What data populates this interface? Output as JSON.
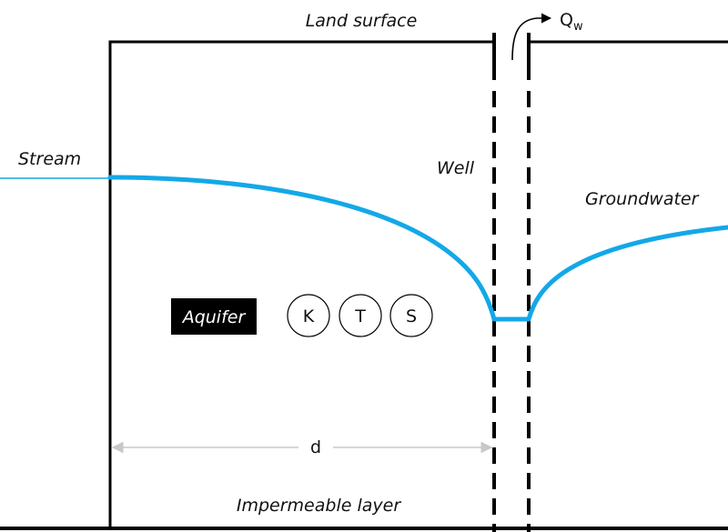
{
  "labels": {
    "land_surface": "Land surface",
    "stream": "Stream",
    "well": "Well",
    "groundwater": "Groundwater",
    "impermeable_layer": "Impermeable layer",
    "aquifer": "Aquifer",
    "distance": "d",
    "pumping_rate_main": "Q",
    "pumping_rate_sub": "w"
  },
  "parameters": [
    "K",
    "T",
    "S"
  ],
  "colors": {
    "water_table": "#13a8e8",
    "stream_line": "#13a8e8",
    "ink": "#000000",
    "dimension_line": "#c8c8c8",
    "aquifer_badge_bg": "#000000",
    "aquifer_badge_text": "#ffffff"
  }
}
